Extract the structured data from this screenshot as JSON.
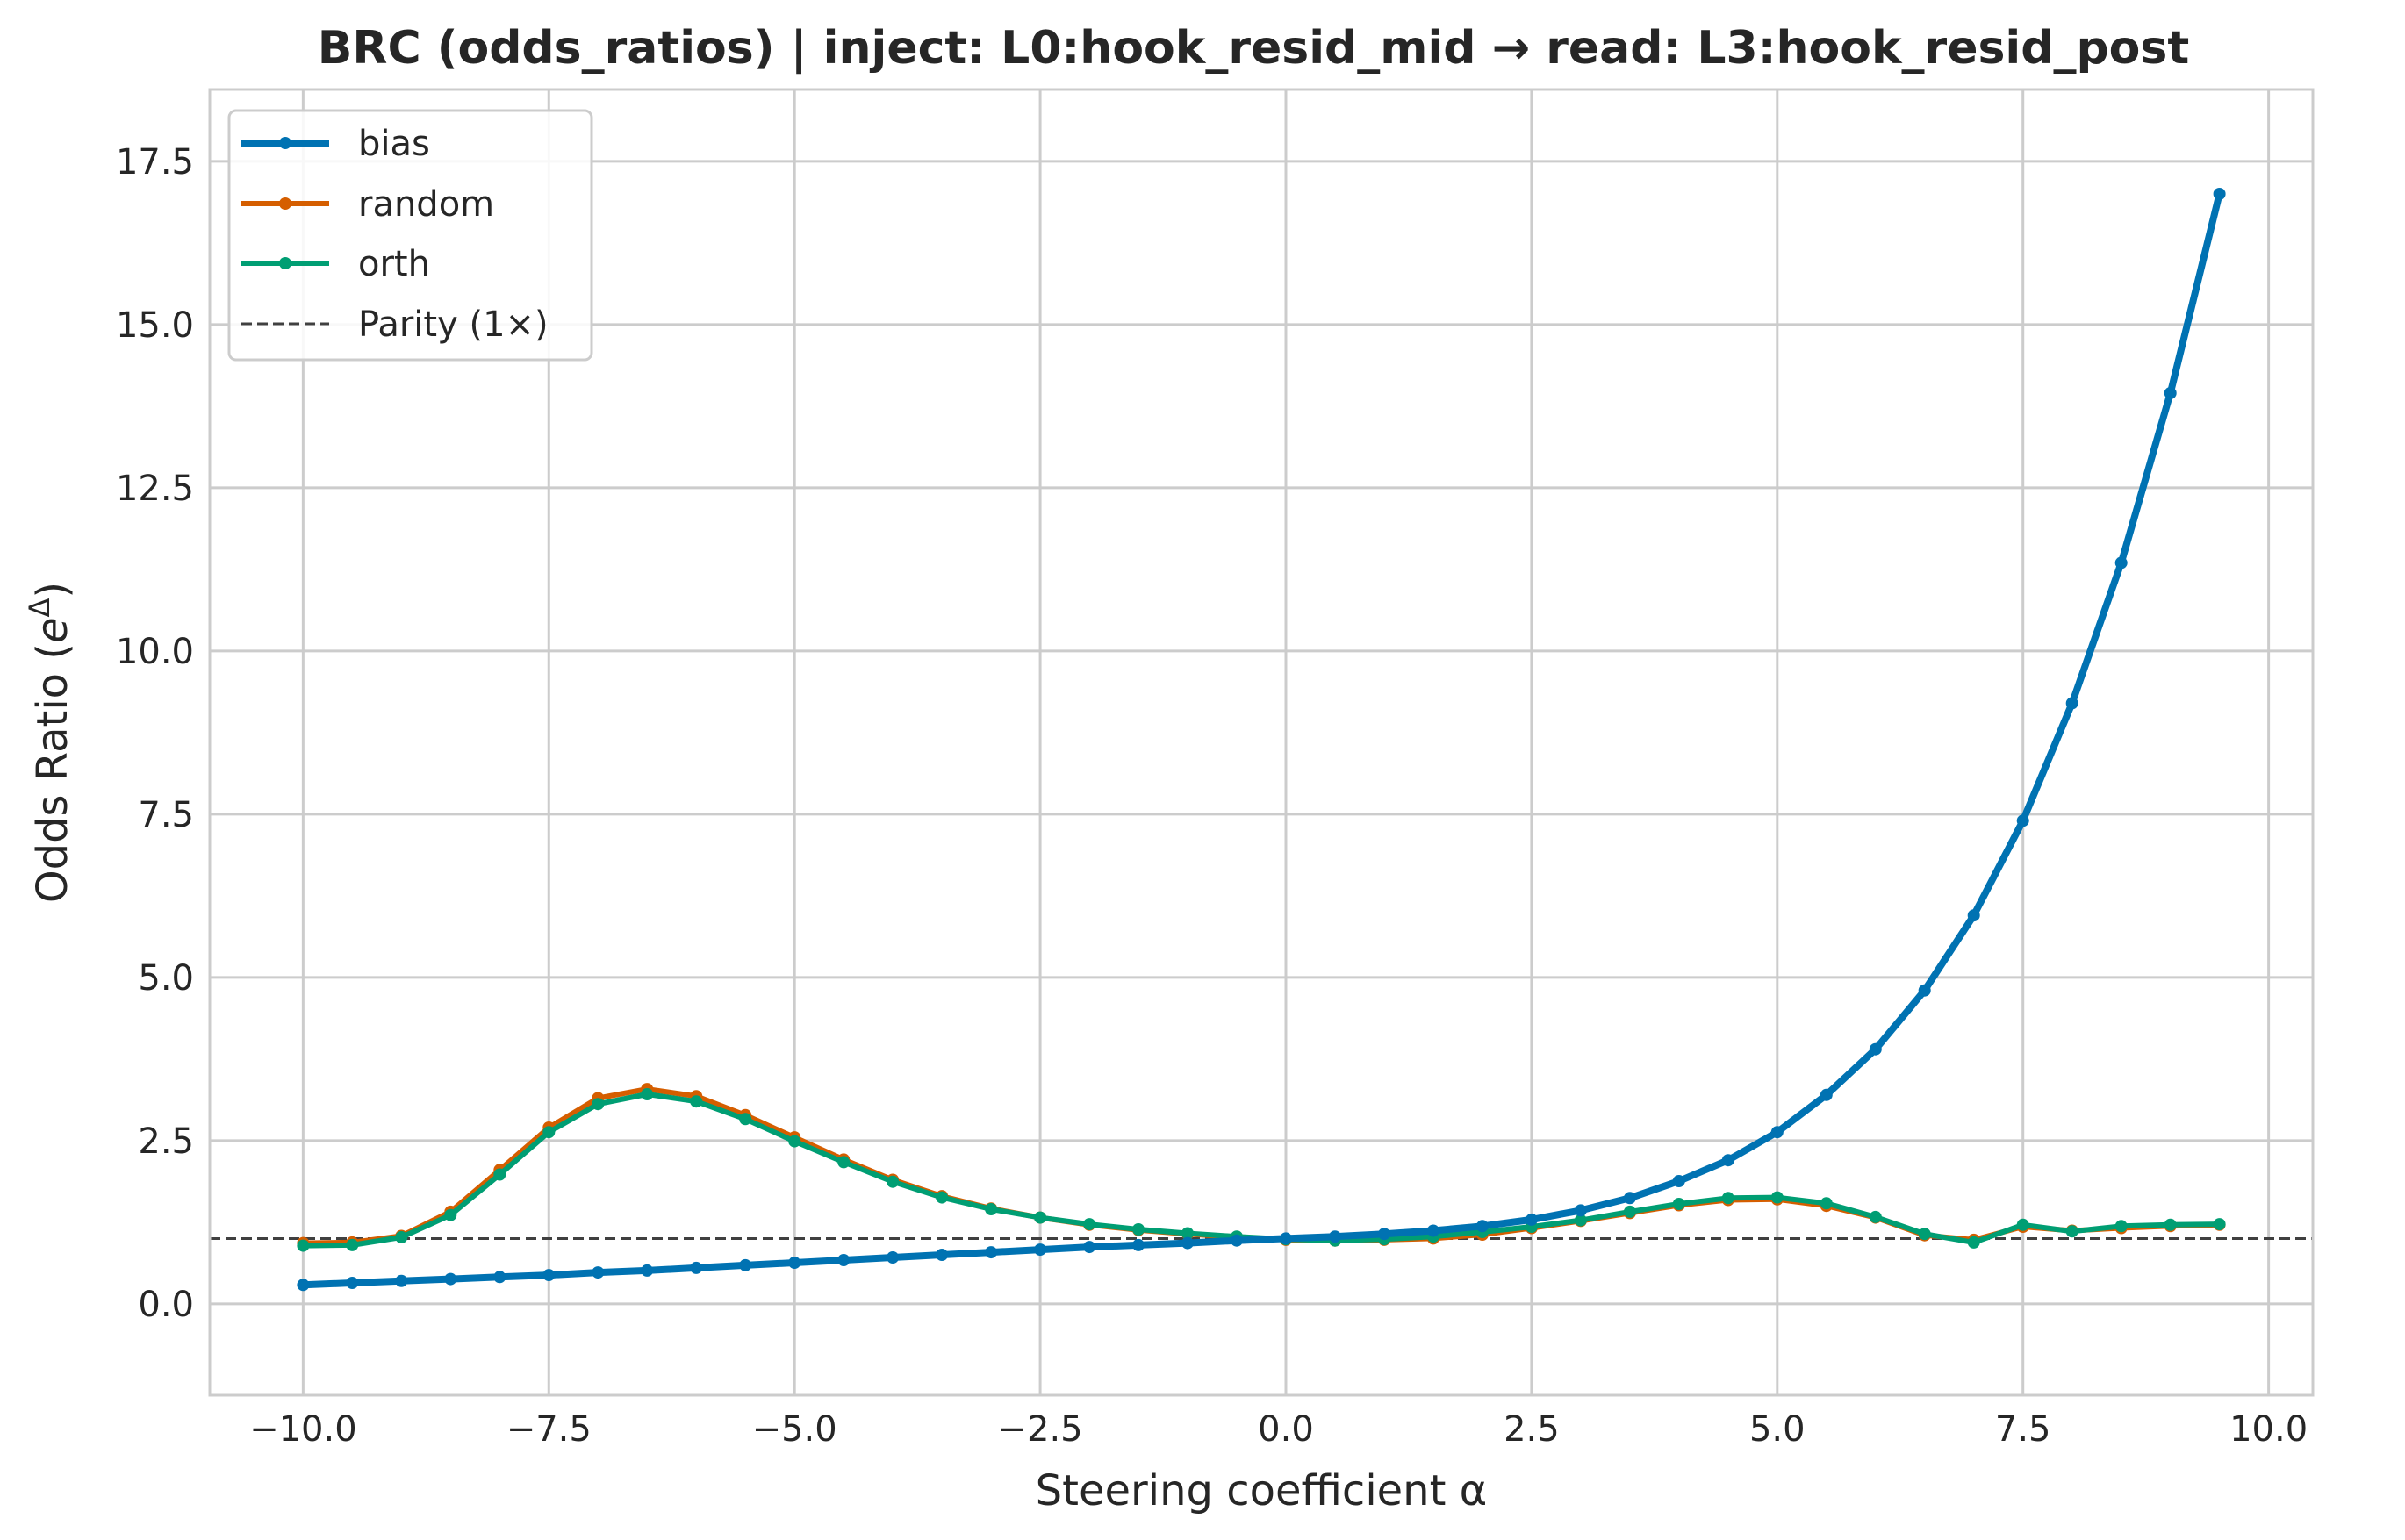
{
  "chart_data": {
    "type": "line",
    "title": "BRC (odds_ratios) | inject: L0:hook_resid_mid → read: L3:hook_resid_post",
    "xlabel": "Steering coefficient α",
    "ylabel": "Odds Ratio (eΔ)",
    "ylabel_main": "Odds Ratio (",
    "ylabel_base": "e",
    "ylabel_sup": "Δ",
    "ylabel_end": ")",
    "xlim": [
      -10.95,
      10.45
    ],
    "ylim": [
      -1.4,
      18.6
    ],
    "x_ticks": [
      -10.0,
      -7.5,
      -5.0,
      -2.5,
      0.0,
      2.5,
      5.0,
      7.5,
      10.0
    ],
    "x_tick_labels": [
      "−10.0",
      "−7.5",
      "−5.0",
      "−2.5",
      "0.0",
      "2.5",
      "5.0",
      "7.5",
      "10.0"
    ],
    "y_ticks": [
      0.0,
      2.5,
      5.0,
      7.5,
      10.0,
      12.5,
      15.0,
      17.5
    ],
    "y_tick_labels": [
      "0.0",
      "2.5",
      "5.0",
      "7.5",
      "10.0",
      "12.5",
      "15.0",
      "17.5"
    ],
    "grid": true,
    "legend_position": "top-left",
    "x": [
      -10.0,
      -9.5,
      -9.0,
      -8.5,
      -8.0,
      -7.5,
      -7.0,
      -6.5,
      -6.0,
      -5.5,
      -5.0,
      -4.5,
      -4.0,
      -3.5,
      -3.0,
      -2.5,
      -2.0,
      -1.5,
      -1.0,
      -0.5,
      0.0,
      0.5,
      1.0,
      1.5,
      2.0,
      2.5,
      3.0,
      3.5,
      4.0,
      4.5,
      5.0,
      5.5,
      6.0,
      6.5,
      7.0,
      7.5,
      8.0,
      8.5,
      9.0,
      9.5
    ],
    "series": [
      {
        "name": "bias",
        "color": "#0072b2",
        "values": [
          0.29,
          0.32,
          0.35,
          0.38,
          0.41,
          0.44,
          0.48,
          0.51,
          0.55,
          0.59,
          0.63,
          0.67,
          0.71,
          0.75,
          0.79,
          0.83,
          0.87,
          0.9,
          0.93,
          0.97,
          1.0,
          1.03,
          1.07,
          1.12,
          1.19,
          1.29,
          1.43,
          1.62,
          1.88,
          2.2,
          2.63,
          3.2,
          3.9,
          4.8,
          5.95,
          7.4,
          9.2,
          11.35,
          13.95,
          17.0
        ]
      },
      {
        "name": "random",
        "color": "#d55e00",
        "values": [
          0.93,
          0.94,
          1.04,
          1.41,
          2.05,
          2.7,
          3.15,
          3.29,
          3.18,
          2.89,
          2.55,
          2.21,
          1.9,
          1.65,
          1.46,
          1.32,
          1.21,
          1.13,
          1.07,
          1.02,
          0.98,
          0.97,
          0.98,
          1.0,
          1.06,
          1.16,
          1.27,
          1.39,
          1.51,
          1.59,
          1.6,
          1.5,
          1.32,
          1.05,
          0.98,
          1.18,
          1.12,
          1.16,
          1.19,
          1.21
        ]
      },
      {
        "name": "orth",
        "color": "#009e73",
        "values": [
          0.89,
          0.9,
          1.02,
          1.36,
          1.98,
          2.63,
          3.06,
          3.21,
          3.1,
          2.83,
          2.49,
          2.17,
          1.87,
          1.63,
          1.45,
          1.32,
          1.22,
          1.14,
          1.08,
          1.03,
          0.99,
          0.97,
          0.99,
          1.03,
          1.1,
          1.18,
          1.28,
          1.41,
          1.53,
          1.62,
          1.63,
          1.54,
          1.33,
          1.07,
          0.94,
          1.21,
          1.11,
          1.19,
          1.21,
          1.22
        ]
      }
    ],
    "reference_line": {
      "name": "Parity (1×)",
      "value": 1.0,
      "color": "#404040"
    }
  }
}
